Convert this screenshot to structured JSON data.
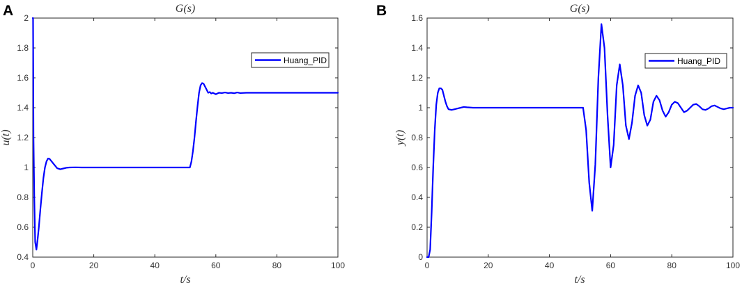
{
  "chart_data": [
    {
      "panel": "A",
      "type": "line",
      "title": "G(s)",
      "xlabel": "t/s",
      "ylabel": "u(t)",
      "xlim": [
        0,
        100
      ],
      "ylim": [
        0.4,
        2
      ],
      "xticks": [
        "0",
        "20",
        "40",
        "60",
        "80",
        "100"
      ],
      "yticks": [
        "0.4",
        "0.6",
        "0.8",
        "1",
        "1.2",
        "1.4",
        "1.6",
        "1.8",
        "2"
      ],
      "legend_position": "top-right",
      "color": "#0000ff",
      "series": [
        {
          "name": "Huang_PID",
          "x": [
            0,
            0.1,
            0.25,
            0.5,
            0.8,
            1.2,
            1.6,
            2,
            2.5,
            3,
            3.5,
            4,
            4.5,
            5,
            5.5,
            6,
            7,
            8,
            9,
            10,
            11,
            12,
            14,
            16,
            20,
            30,
            40,
            45,
            50,
            50.5,
            51,
            51.5,
            52,
            52.5,
            53,
            53.5,
            54,
            54.5,
            55,
            55.5,
            56,
            56.5,
            57,
            57.5,
            58,
            58.5,
            59,
            60,
            61,
            62,
            63,
            64,
            65,
            66,
            67,
            68,
            70,
            75,
            80,
            85,
            90,
            95,
            100
          ],
          "y": [
            2.0,
            2.0,
            1.2,
            0.8,
            0.5,
            0.45,
            0.52,
            0.6,
            0.72,
            0.83,
            0.93,
            1.0,
            1.04,
            1.06,
            1.058,
            1.045,
            1.02,
            0.995,
            0.988,
            0.993,
            0.998,
            1.0,
            1.001,
            1.0,
            1.0,
            1.0,
            1.0,
            1.0,
            1.0,
            1.0,
            1.0,
            1.0,
            1.04,
            1.11,
            1.2,
            1.31,
            1.41,
            1.5,
            1.55,
            1.565,
            1.56,
            1.54,
            1.52,
            1.5,
            1.505,
            1.495,
            1.5,
            1.49,
            1.5,
            1.498,
            1.502,
            1.498,
            1.5,
            1.497,
            1.502,
            1.498,
            1.5,
            1.5,
            1.5,
            1.5,
            1.5,
            1.5,
            1.5
          ]
        }
      ]
    },
    {
      "panel": "B",
      "type": "line",
      "title": "G(s)",
      "xlabel": "t/s",
      "ylabel": "y(t)",
      "xlim": [
        0,
        100
      ],
      "ylim": [
        0,
        1.6
      ],
      "xticks": [
        "0",
        "20",
        "40",
        "60",
        "80",
        "100"
      ],
      "yticks": [
        "0",
        "0.2",
        "0.4",
        "0.6",
        "0.8",
        "1",
        "1.2",
        "1.4",
        "1.6"
      ],
      "legend_position": "top-right",
      "color": "#0000ff",
      "series": [
        {
          "name": "Huang_PID",
          "x": [
            0,
            0.5,
            1,
            1.5,
            2,
            2.5,
            3,
            3.5,
            4,
            4.5,
            5,
            5.5,
            6,
            6.5,
            7,
            8,
            9,
            10,
            11,
            12,
            13,
            15,
            20,
            30,
            40,
            50,
            51,
            52,
            53,
            54,
            55,
            56,
            57,
            58,
            59,
            60,
            61,
            62,
            63,
            64,
            65,
            66,
            67,
            68,
            69,
            70,
            71,
            72,
            73,
            74,
            75,
            76,
            77,
            78,
            79,
            80,
            81,
            82,
            83,
            84,
            85,
            86,
            87,
            88,
            89,
            90,
            91,
            92,
            93,
            94,
            95,
            96,
            97,
            98,
            99,
            100
          ],
          "y": [
            0,
            0,
            0.05,
            0.3,
            0.6,
            0.85,
            1.02,
            1.1,
            1.13,
            1.13,
            1.12,
            1.08,
            1.04,
            1.01,
            0.99,
            0.985,
            0.99,
            0.995,
            1.0,
            1.005,
            1.003,
            1.0,
            1.0,
            1.0,
            1.0,
            1.0,
            1.0,
            0.85,
            0.5,
            0.31,
            0.62,
            1.2,
            1.56,
            1.4,
            0.95,
            0.6,
            0.75,
            1.15,
            1.29,
            1.15,
            0.88,
            0.79,
            0.9,
            1.08,
            1.15,
            1.1,
            0.95,
            0.88,
            0.92,
            1.04,
            1.08,
            1.05,
            0.98,
            0.94,
            0.97,
            1.02,
            1.04,
            1.03,
            1.0,
            0.97,
            0.98,
            1.0,
            1.02,
            1.025,
            1.01,
            0.99,
            0.985,
            0.995,
            1.01,
            1.015,
            1.005,
            0.995,
            0.99,
            0.995,
            1.0,
            1.0
          ]
        }
      ]
    }
  ],
  "panels": [
    {
      "letter": "A"
    },
    {
      "letter": "B"
    }
  ]
}
